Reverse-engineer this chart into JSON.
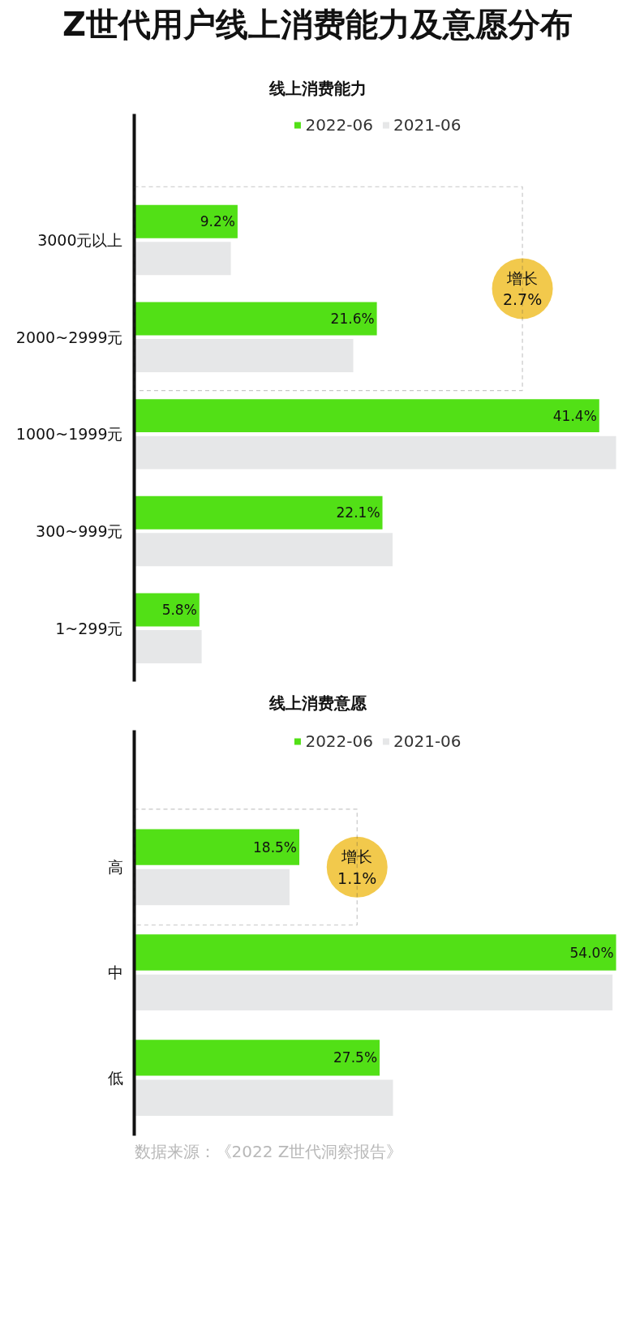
{
  "chart_data": [
    {
      "type": "bar",
      "orientation": "horizontal",
      "title": "Z世代用户线上消费能力及意愿分布",
      "subtitle": "线上消费能力",
      "categories": [
        "3000元以上",
        "2000~2999元",
        "1000~1999元",
        "300~999元",
        "1~299元"
      ],
      "series": [
        {
          "name": "2022-06",
          "color": "#52e016",
          "values": [
            9.2,
            21.6,
            41.4,
            22.1,
            5.8
          ],
          "value_labels": [
            "9.2%",
            "21.6%",
            "41.4%",
            "22.1%",
            "5.8%"
          ]
        },
        {
          "name": "2021-06",
          "color": "#e6e7e8",
          "values": [
            8.6,
            19.5,
            42.9,
            23.0,
            6.0
          ]
        }
      ],
      "annotations": [
        "增长\n2.7%"
      ],
      "legend": "top",
      "grid": false,
      "tick_labels": "y"
    },
    {
      "type": "bar",
      "orientation": "horizontal",
      "title": "线上消费意愿",
      "categories": [
        "高",
        "中",
        "低"
      ],
      "series": [
        {
          "name": "2022-06",
          "color": "#52e016",
          "values": [
            18.5,
            54.0,
            27.5
          ],
          "value_labels": [
            "18.5%",
            "54.0%",
            "27.5%"
          ]
        },
        {
          "name": "2021-06",
          "color": "#e6e7e8",
          "values": [
            17.4,
            53.6,
            29.0
          ]
        }
      ],
      "annotations": [
        "增长\n1.1%",
        "数据来源：《2022 Z世代洞察报告》"
      ],
      "legend": "top",
      "grid": false,
      "tick_labels": "y"
    }
  ]
}
